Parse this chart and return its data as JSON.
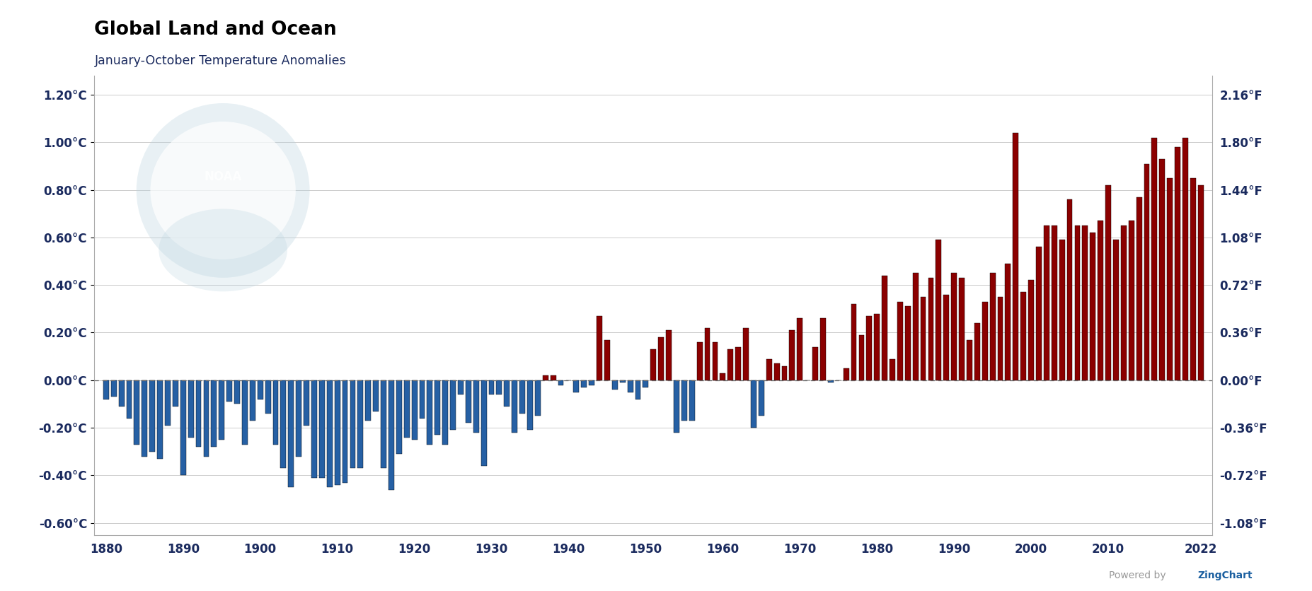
{
  "title": "Global Land and Ocean",
  "subtitle": "January-October Temperature Anomalies",
  "years": [
    1880,
    1881,
    1882,
    1883,
    1884,
    1885,
    1886,
    1887,
    1888,
    1889,
    1890,
    1891,
    1892,
    1893,
    1894,
    1895,
    1896,
    1897,
    1898,
    1899,
    1900,
    1901,
    1902,
    1903,
    1904,
    1905,
    1906,
    1907,
    1908,
    1909,
    1910,
    1911,
    1912,
    1913,
    1914,
    1915,
    1916,
    1917,
    1918,
    1919,
    1920,
    1921,
    1922,
    1923,
    1924,
    1925,
    1926,
    1927,
    1928,
    1929,
    1930,
    1931,
    1932,
    1933,
    1934,
    1935,
    1936,
    1937,
    1938,
    1939,
    1940,
    1941,
    1942,
    1943,
    1944,
    1945,
    1946,
    1947,
    1948,
    1949,
    1950,
    1951,
    1952,
    1953,
    1954,
    1955,
    1956,
    1957,
    1958,
    1959,
    1960,
    1961,
    1962,
    1963,
    1964,
    1965,
    1966,
    1967,
    1968,
    1969,
    1970,
    1971,
    1972,
    1973,
    1974,
    1975,
    1976,
    1977,
    1978,
    1979,
    1980,
    1981,
    1982,
    1983,
    1984,
    1985,
    1986,
    1987,
    1988,
    1989,
    1990,
    1991,
    1992,
    1993,
    1994,
    1995,
    1996,
    1997,
    1998,
    1999,
    2000,
    2001,
    2002,
    2003,
    2004,
    2005,
    2006,
    2007,
    2008,
    2009,
    2010,
    2011,
    2012,
    2013,
    2014,
    2015,
    2016,
    2017,
    2018,
    2019,
    2020,
    2021,
    2022
  ],
  "values": [
    -0.08,
    -0.07,
    -0.11,
    -0.16,
    -0.27,
    -0.32,
    -0.3,
    -0.33,
    -0.19,
    -0.11,
    -0.4,
    -0.24,
    -0.28,
    -0.32,
    -0.28,
    -0.25,
    -0.09,
    -0.1,
    -0.27,
    -0.17,
    -0.08,
    -0.14,
    -0.27,
    -0.37,
    -0.45,
    -0.32,
    -0.19,
    -0.41,
    -0.41,
    -0.45,
    -0.44,
    -0.43,
    -0.37,
    -0.37,
    -0.17,
    -0.13,
    -0.37,
    -0.46,
    -0.31,
    -0.24,
    -0.25,
    -0.16,
    -0.27,
    -0.23,
    -0.27,
    -0.21,
    -0.06,
    -0.18,
    -0.22,
    -0.36,
    -0.06,
    -0.06,
    -0.11,
    -0.22,
    -0.14,
    -0.21,
    -0.15,
    0.02,
    0.02,
    -0.02,
    0.0,
    -0.05,
    -0.03,
    -0.02,
    0.27,
    0.17,
    -0.04,
    -0.01,
    -0.05,
    -0.08,
    -0.03,
    0.13,
    0.18,
    0.21,
    -0.22,
    -0.17,
    -0.17,
    0.16,
    0.22,
    0.16,
    0.03,
    0.13,
    0.14,
    0.22,
    -0.2,
    -0.15,
    0.09,
    0.07,
    0.06,
    0.21,
    0.26,
    0.0,
    0.14,
    0.26,
    -0.01,
    0.0,
    0.05,
    0.32,
    0.19,
    0.27,
    0.28,
    0.44,
    0.09,
    0.33,
    0.31,
    0.45,
    0.35,
    0.43,
    0.59,
    0.36,
    0.45,
    0.43,
    0.17,
    0.24,
    0.33,
    0.45,
    0.35,
    0.49,
    1.04,
    0.37,
    0.42,
    0.56,
    0.65,
    0.65,
    0.59,
    0.76,
    0.65,
    0.65,
    0.62,
    0.67,
    0.82,
    0.59,
    0.65,
    0.67,
    0.77,
    0.91,
    1.02,
    0.93,
    0.85,
    0.98,
    1.02,
    0.85,
    0.82
  ],
  "bar_color_pos": "#8B0000",
  "bar_color_neg": "#2660A4",
  "background_color": "#ffffff",
  "grid_color": "#cccccc",
  "text_color": "#1a2a5e",
  "yticks_c": [
    -0.6,
    -0.4,
    -0.2,
    0.0,
    0.2,
    0.4,
    0.6,
    0.8,
    1.0,
    1.2
  ],
  "ytick_labels_c": [
    "-0.60°C",
    "-0.40°C",
    "-0.20°C",
    "0.00°C",
    "0.20°C",
    "0.40°C",
    "0.60°C",
    "0.80°C",
    "1.00°C",
    "1.20°C"
  ],
  "ytick_labels_f": [
    "-1.08°F",
    "-0.72°F",
    "-0.36°F",
    "0.00°F",
    "0.36°F",
    "0.72°F",
    "1.08°F",
    "1.44°F",
    "1.80°F",
    "2.16°F"
  ],
  "xticks": [
    1880,
    1890,
    1900,
    1910,
    1920,
    1930,
    1940,
    1950,
    1960,
    1970,
    1980,
    1990,
    2000,
    2010,
    2022
  ],
  "xlim": [
    1878.5,
    2023.5
  ],
  "ylim_min": -0.65,
  "ylim_max": 1.28,
  "noaa_logo_color": "#bad4e0",
  "noaa_logo_alpha": 0.55,
  "zingchart_color": "#1a5fa0"
}
